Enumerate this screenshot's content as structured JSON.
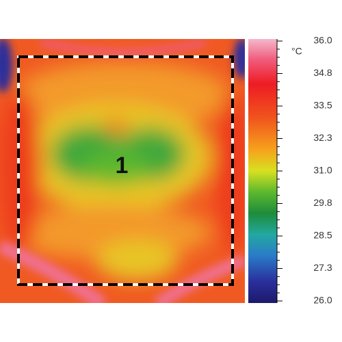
{
  "region_label": "1",
  "colorbar": {
    "unit": "°C",
    "ticks": [
      "36.0",
      "34.8",
      "33.5",
      "32.3",
      "31.0",
      "29.8",
      "28.5",
      "27.3",
      "26.0"
    ]
  }
}
